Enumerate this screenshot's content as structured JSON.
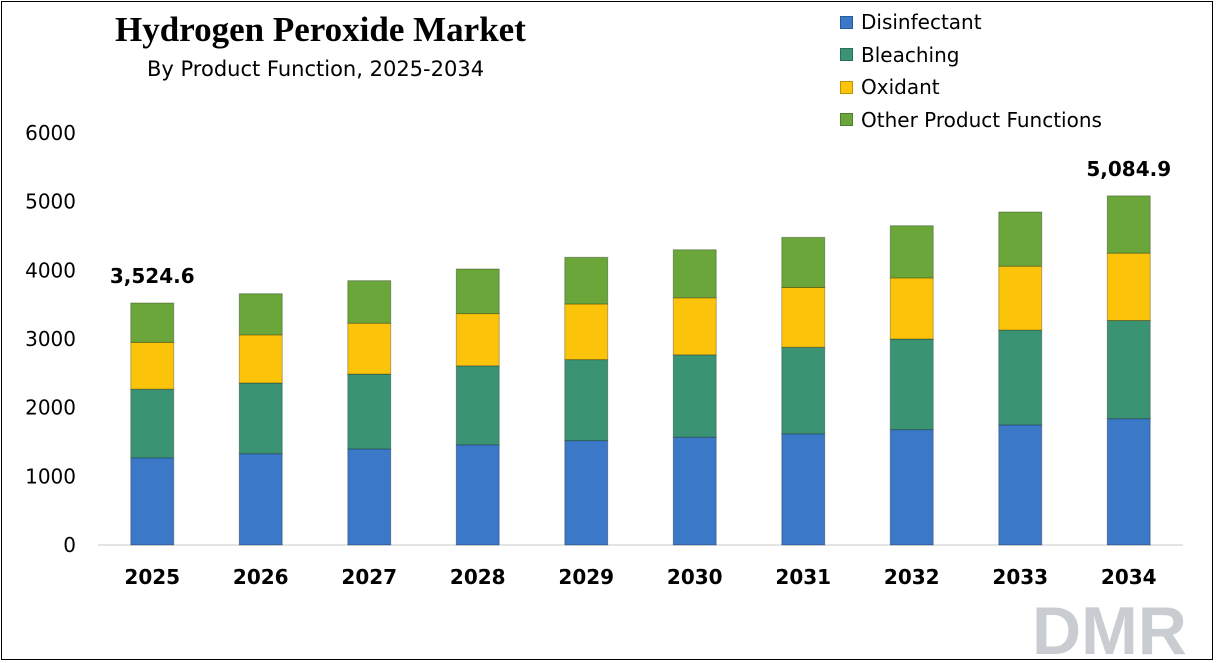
{
  "title": "Hydrogen Peroxide Market",
  "subtitle": "By Product Function, 2025-2034",
  "legend": [
    {
      "label": "Disinfectant",
      "color": "#3b78c7"
    },
    {
      "label": "Bleaching",
      "color": "#3a9474"
    },
    {
      "label": "Oxidant",
      "color": "#fcc30b"
    },
    {
      "label": "Other Product Functions",
      "color": "#6aa63a"
    }
  ],
  "logo_text": "DMR",
  "chart_data": {
    "type": "bar",
    "stacked": true,
    "title": "Hydrogen Peroxide Market",
    "subtitle": "By Product Function, 2025-2034",
    "xlabel": "",
    "ylabel": "",
    "ylim": [
      0,
      6000
    ],
    "yticks": [
      0,
      1000,
      2000,
      3000,
      4000,
      5000,
      6000
    ],
    "grid": false,
    "legend_position": "top-right",
    "categories": [
      "2025",
      "2026",
      "2027",
      "2028",
      "2029",
      "2030",
      "2031",
      "2032",
      "2033",
      "2034"
    ],
    "series": [
      {
        "name": "Disinfectant",
        "color": "#3b78c7",
        "values": [
          1270,
          1330,
          1400,
          1460,
          1520,
          1570,
          1620,
          1680,
          1750,
          1840
        ]
      },
      {
        "name": "Bleaching",
        "color": "#3a9474",
        "values": [
          1000,
          1030,
          1090,
          1150,
          1180,
          1200,
          1260,
          1320,
          1380,
          1430
        ]
      },
      {
        "name": "Oxidant",
        "color": "#fcc30b",
        "values": [
          680,
          700,
          740,
          760,
          810,
          830,
          870,
          890,
          930,
          980
        ]
      },
      {
        "name": "Other Product Functions",
        "color": "#6aa63a",
        "values": [
          574.6,
          600,
          620,
          650,
          680,
          700,
          730,
          760,
          790,
          834.9
        ]
      }
    ],
    "totals": [
      3524.6,
      3660,
      3850,
      4020,
      4190,
      4300,
      4480,
      4650,
      4850,
      5084.9
    ],
    "data_labels": [
      {
        "category": "2025",
        "text": "3,524.6"
      },
      {
        "category": "2034",
        "text": "5,084.9"
      }
    ]
  }
}
